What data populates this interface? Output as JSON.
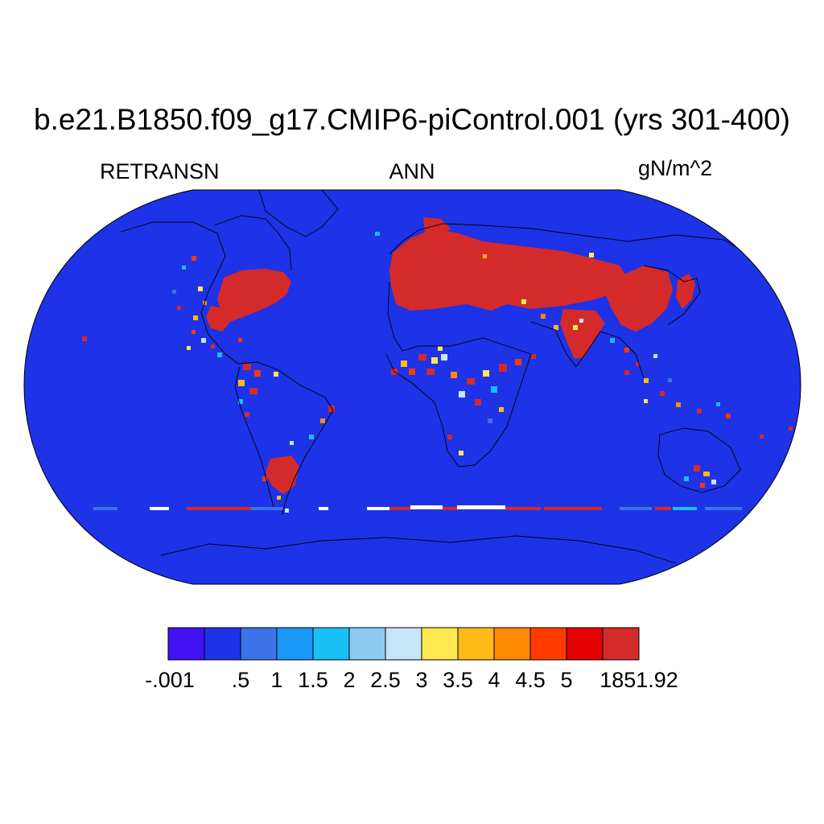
{
  "header": {
    "title": "b.e21.B1850.f09_g17.CMIP6-piControl.001 (yrs 301-400)",
    "left_label": "RETRANSN",
    "center_label": "ANN",
    "right_label": "gN/m^2"
  },
  "map": {
    "projection": "robinson",
    "ocean_fill_color": "#1e32e8",
    "coastline_color": "#000000"
  },
  "colorbar": {
    "colors": [
      "#4212f4",
      "#1e32e8",
      "#3a74e8",
      "#1a98f8",
      "#19c0f5",
      "#8ccaef",
      "#c8e4f7",
      "#ffe850",
      "#ffba16",
      "#ff8a00",
      "#ff3a00",
      "#e40000",
      "#d42a2a"
    ],
    "labels": [
      "-.001",
      ".5",
      "1",
      "1.5",
      "2",
      "2.5",
      "3",
      "3.5",
      "4",
      "4.5",
      "5",
      "1851.92"
    ]
  }
}
